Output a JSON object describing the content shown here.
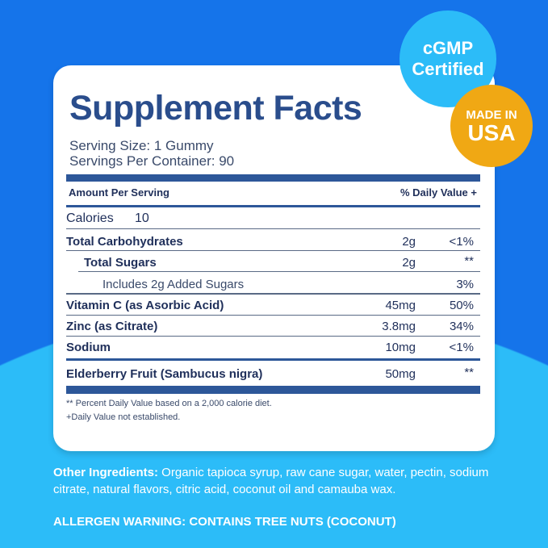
{
  "title": "Supplement Facts",
  "serving_size": "Serving Size: 1 Gummy",
  "servings_per_container": "Servings Per Container: 90",
  "header": {
    "amount": "Amount Per Serving",
    "daily_value": "% Daily Value +"
  },
  "calories": {
    "label": "Calories",
    "value": "10"
  },
  "rows": [
    {
      "name": "Total Carbohydrates",
      "amount": "2g",
      "dv": "<1%"
    },
    {
      "name": "Total Sugars",
      "amount": "2g",
      "dv": "**"
    },
    {
      "name": "Includes 2g Added Sugars",
      "amount": "",
      "dv": "3%"
    },
    {
      "name": "Vitamin C (as Asorbic Acid)",
      "amount": "45mg",
      "dv": "50%"
    },
    {
      "name": "Zinc (as Citrate)",
      "amount": "3.8mg",
      "dv": "34%"
    },
    {
      "name": "Sodium",
      "amount": "10mg",
      "dv": "<1%"
    },
    {
      "name": "Elderberry Fruit (Sambucus nigra)",
      "amount": "50mg",
      "dv": "**"
    }
  ],
  "footnotes": [
    "** Percent Daily Value based on a 2,000 calorie diet.",
    "+Daily Value not established."
  ],
  "badges": {
    "cgmp_line1": "cGMP",
    "cgmp_line2": "Certified",
    "usa_line1": "MADE IN",
    "usa_line2": "USA"
  },
  "other_ingredients": {
    "label": "Other Ingredients:",
    "text": " Organic tapioca syrup, raw cane sugar, water, pectin, sodium citrate, natural flavors, citric acid, coconut oil and camauba wax."
  },
  "allergen": "ALLERGEN WARNING: CONTAINS TREE NUTS (COCONUT)",
  "colors": {
    "background": "#1574ea",
    "arc": "#2cbcf8",
    "heading": "#2a4d8c",
    "cgmp_badge": "#2cbcf8",
    "usa_badge": "#f0a814"
  }
}
